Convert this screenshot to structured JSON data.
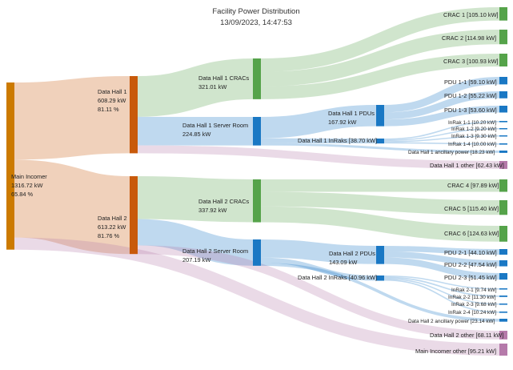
{
  "title": "Facility Power Distribution",
  "subtitle": "13/09/2023, 14:47:53",
  "colors": {
    "main": "#cc7a00",
    "hall": "#c85a0b",
    "crac": "#55a34a",
    "pdu": "#1a78c4",
    "other": "#b57aaa"
  },
  "nodes": {
    "main": {
      "lines": [
        "Main Incomer",
        "1316.72 kW",
        "65.84 %"
      ]
    },
    "dh1": {
      "lines": [
        "Data Hall 1",
        "608.29 kW",
        "81.11 %"
      ]
    },
    "dh2": {
      "lines": [
        "Data Hall 2",
        "613.22 kW",
        "81.76 %"
      ]
    },
    "dh1crac": {
      "lines": [
        "Data Hall 1 CRACs",
        "321.01 kW"
      ]
    },
    "dh1sr": {
      "lines": [
        "Data Hall 1 Server Room",
        "224.85 kW"
      ]
    },
    "dh2crac": {
      "lines": [
        "Data Hall 2 CRACs",
        "337.92 kW"
      ]
    },
    "dh2sr": {
      "lines": [
        "Data Hall 2 Server Room",
        "207.19 kW"
      ]
    },
    "dh1pdu": {
      "lines": [
        "Data Hall 1 PDUs",
        "167.92 kW"
      ]
    },
    "dh1inrak": {
      "lines": [
        "Data Hall 1 InRaks [38.70 kW]"
      ]
    },
    "dh2pdu": {
      "lines": [
        "Data Hall 2 PDUs",
        "143.09 kW"
      ]
    },
    "dh2inrak": {
      "lines": [
        "Data Hall 2 InRaks [40.96 kW]"
      ]
    },
    "crac1": {
      "lines": [
        "CRAC 1 [105.10 kW]"
      ]
    },
    "crac2": {
      "lines": [
        "CRAC 2 [114.98 kW]"
      ]
    },
    "crac3": {
      "lines": [
        "CRAC 3 [100.93 kW]"
      ]
    },
    "pdu11": {
      "lines": [
        "PDU 1-1 [59.10 kW]"
      ]
    },
    "pdu12": {
      "lines": [
        "PDU 1-2 [55.22 kW]"
      ]
    },
    "pdu13": {
      "lines": [
        "PDU 1-3 [53.60 kW]"
      ]
    },
    "inrak11": {
      "lines": [
        "InRak 1-1 [10.20 kW]"
      ]
    },
    "inrak12": {
      "lines": [
        "InRak 1-2 [9.20 kW]"
      ]
    },
    "inrak13": {
      "lines": [
        "InRak 1-3 [9.30 kW]"
      ]
    },
    "inrak14": {
      "lines": [
        "InRak 1-4 [10.00 kW]"
      ]
    },
    "dh1anc": {
      "lines": [
        "Data Hall 1 ancillary power [18.23 kW]"
      ]
    },
    "dh1other": {
      "lines": [
        "Data Hall 1 other [62.43 kW]"
      ]
    },
    "crac4": {
      "lines": [
        "CRAC 4 [97.89 kW]"
      ]
    },
    "crac5": {
      "lines": [
        "CRAC 5 [115.40 kW]"
      ]
    },
    "crac6": {
      "lines": [
        "CRAC 6 [124.63 kW]"
      ]
    },
    "pdu21": {
      "lines": [
        "PDU 2-1 [44.10 kW]"
      ]
    },
    "pdu22": {
      "lines": [
        "PDU 2-2 [47.54 kW]"
      ]
    },
    "pdu23": {
      "lines": [
        "PDU 2-3 [51.45 kW]"
      ]
    },
    "inrak21": {
      "lines": [
        "InRak 2-1 [9.74 kW]"
      ]
    },
    "inrak22": {
      "lines": [
        "InRak 2-2 [11.30 kW]"
      ]
    },
    "inrak23": {
      "lines": [
        "InRak 2-3 [9.68 kW]"
      ]
    },
    "inrak24": {
      "lines": [
        "InRak 2-4 [10.24 kW]"
      ]
    },
    "dh2anc": {
      "lines": [
        "Data Hall 2 ancillary power [23.14 kW]"
      ]
    },
    "dh2other": {
      "lines": [
        "Data Hall 2 other [68.11 kW]"
      ]
    },
    "mainother": {
      "lines": [
        "Main Incomer other [95.21 kW]"
      ]
    }
  },
  "flows": [
    {
      "source": "main",
      "target": "dh1",
      "value": 608.29
    },
    {
      "source": "main",
      "target": "dh2",
      "value": 613.22
    },
    {
      "source": "main",
      "target": "mainother",
      "value": 95.21
    },
    {
      "source": "dh1",
      "target": "dh1crac",
      "value": 321.01
    },
    {
      "source": "dh1",
      "target": "dh1sr",
      "value": 224.85
    },
    {
      "source": "dh1",
      "target": "dh1other",
      "value": 62.43
    },
    {
      "source": "dh2",
      "target": "dh2crac",
      "value": 337.92
    },
    {
      "source": "dh2",
      "target": "dh2sr",
      "value": 207.19
    },
    {
      "source": "dh2",
      "target": "dh2other",
      "value": 68.11
    },
    {
      "source": "dh1crac",
      "target": "crac1",
      "value": 105.1
    },
    {
      "source": "dh1crac",
      "target": "crac2",
      "value": 114.98
    },
    {
      "source": "dh1crac",
      "target": "crac3",
      "value": 100.93
    },
    {
      "source": "dh1sr",
      "target": "dh1pdu",
      "value": 167.92
    },
    {
      "source": "dh1sr",
      "target": "dh1inrak",
      "value": 38.7
    },
    {
      "source": "dh1sr",
      "target": "dh1anc",
      "value": 18.23
    },
    {
      "source": "dh1pdu",
      "target": "pdu11",
      "value": 59.1
    },
    {
      "source": "dh1pdu",
      "target": "pdu12",
      "value": 55.22
    },
    {
      "source": "dh1pdu",
      "target": "pdu13",
      "value": 53.6
    },
    {
      "source": "dh1inrak",
      "target": "inrak11",
      "value": 10.2
    },
    {
      "source": "dh1inrak",
      "target": "inrak12",
      "value": 9.2
    },
    {
      "source": "dh1inrak",
      "target": "inrak13",
      "value": 9.3
    },
    {
      "source": "dh1inrak",
      "target": "inrak14",
      "value": 10.0
    },
    {
      "source": "dh2crac",
      "target": "crac4",
      "value": 97.89
    },
    {
      "source": "dh2crac",
      "target": "crac5",
      "value": 115.4
    },
    {
      "source": "dh2crac",
      "target": "crac6",
      "value": 124.63
    },
    {
      "source": "dh2sr",
      "target": "dh2pdu",
      "value": 143.09
    },
    {
      "source": "dh2sr",
      "target": "dh2inrak",
      "value": 40.96
    },
    {
      "source": "dh2sr",
      "target": "dh2anc",
      "value": 23.14
    },
    {
      "source": "dh2pdu",
      "target": "pdu21",
      "value": 44.1
    },
    {
      "source": "dh2pdu",
      "target": "pdu22",
      "value": 47.54
    },
    {
      "source": "dh2pdu",
      "target": "pdu23",
      "value": 51.45
    },
    {
      "source": "dh2inrak",
      "target": "inrak21",
      "value": 9.74
    },
    {
      "source": "dh2inrak",
      "target": "inrak22",
      "value": 11.3
    },
    {
      "source": "dh2inrak",
      "target": "inrak23",
      "value": 9.68
    },
    {
      "source": "dh2inrak",
      "target": "inrak24",
      "value": 10.24
    }
  ]
}
